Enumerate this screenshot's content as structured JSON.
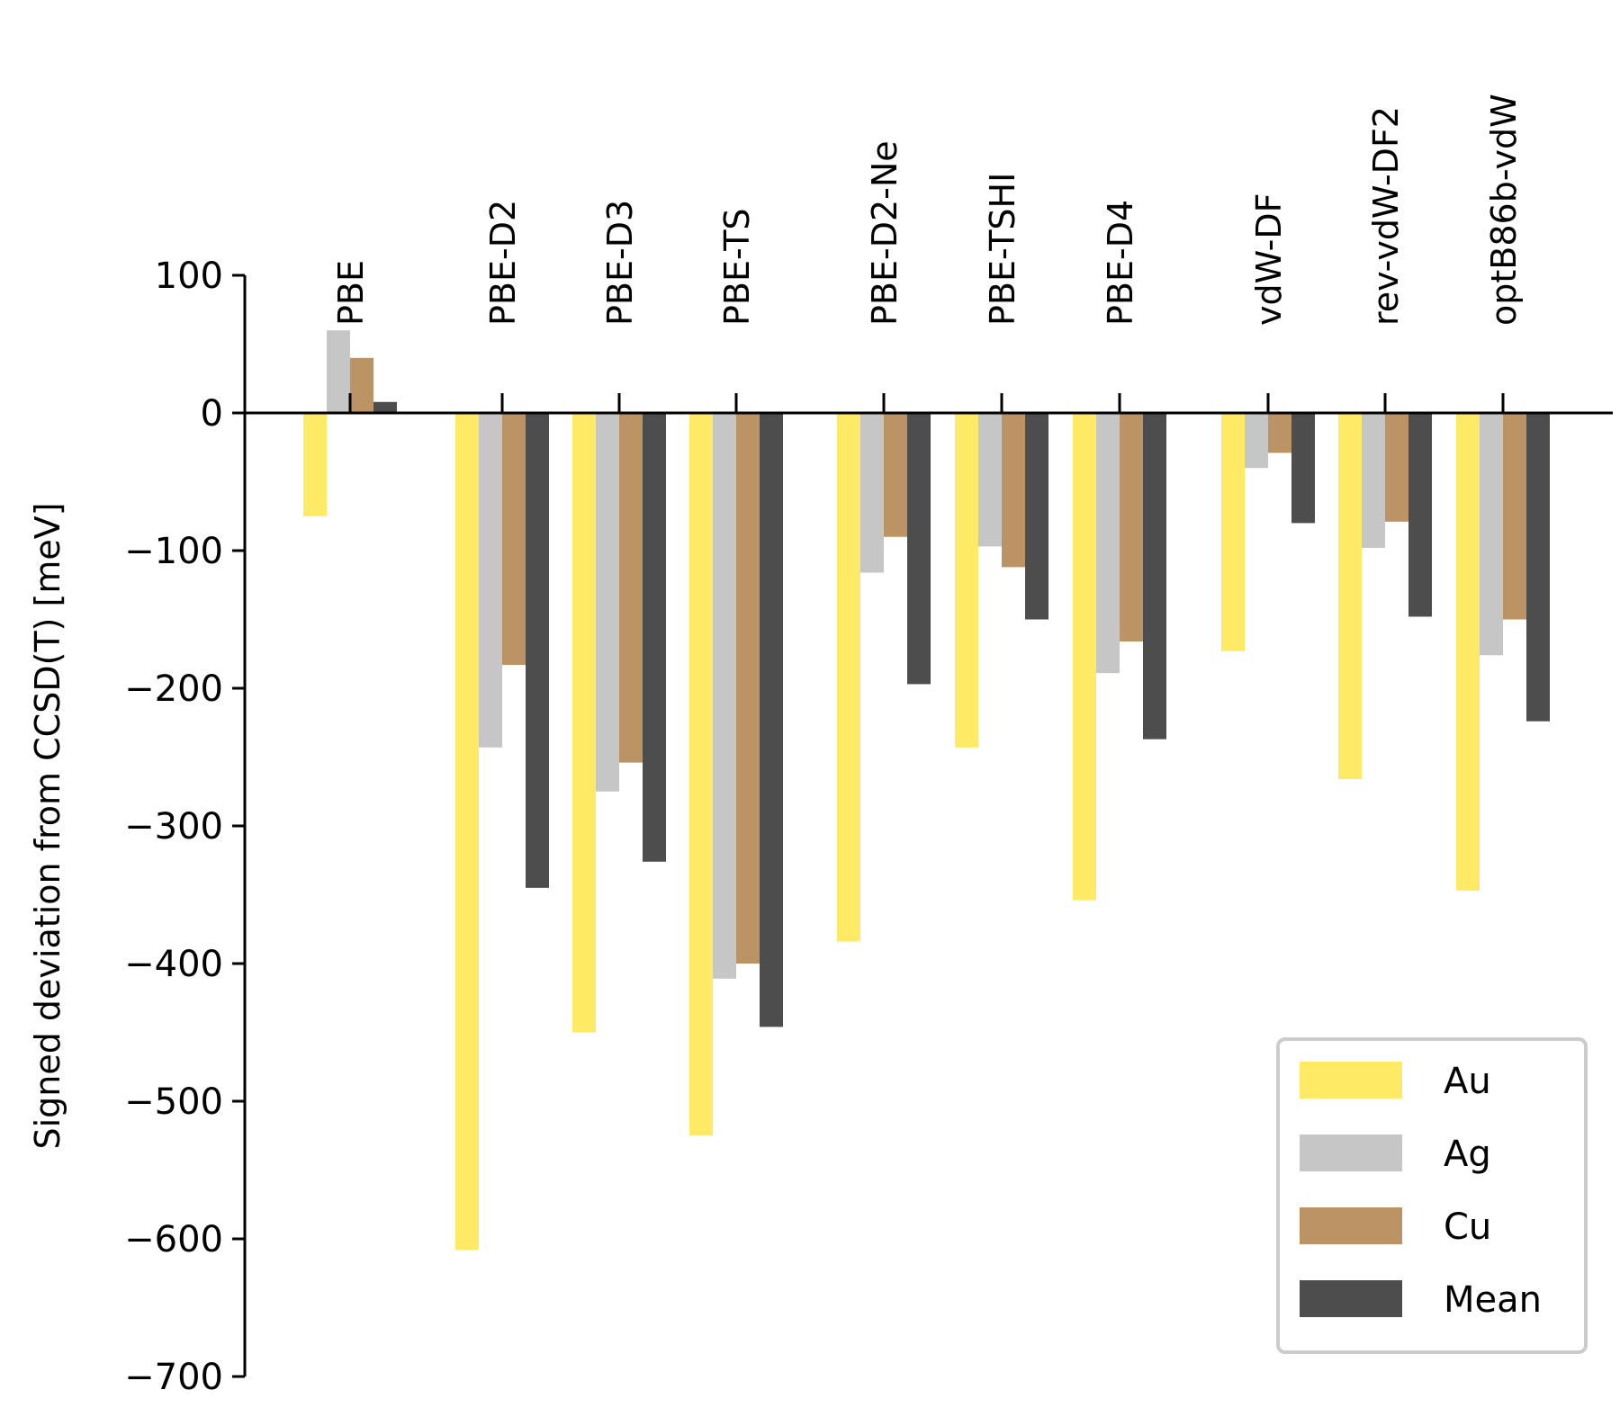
{
  "chart_data": {
    "type": "bar",
    "ylabel": "Signed deviation from CCSD(T) [meV]",
    "ylim": [
      -700,
      100
    ],
    "yticks": [
      100,
      0,
      -100,
      -200,
      -300,
      -400,
      -500,
      -600,
      -700
    ],
    "ytick_labels": [
      "100",
      "0",
      "−100",
      "−200",
      "−300",
      "−400",
      "−500",
      "−600",
      "−700"
    ],
    "categories": [
      "PBE",
      "PBE-D2",
      "PBE-D3",
      "PBE-TS",
      "PBE-D2-Ne",
      "PBE-TSHI",
      "PBE-D4",
      "vdW-DF",
      "rev-vdW-DF2",
      "optB86b-vdW"
    ],
    "series": [
      {
        "name": "Au",
        "color": "#ffea66",
        "values": [
          -75,
          -608,
          -450,
          -525,
          -384,
          -243,
          -354,
          -173,
          -266,
          -347
        ]
      },
      {
        "name": "Ag",
        "color": "#c6c6c6",
        "values": [
          60,
          -243,
          -275,
          -411,
          -116,
          -97,
          -189,
          -40,
          -98,
          -176
        ]
      },
      {
        "name": "Cu",
        "color": "#bc9364",
        "values": [
          40,
          -183,
          -254,
          -400,
          -90,
          -112,
          -166,
          -29,
          -79,
          -150
        ]
      },
      {
        "name": "Mean",
        "color": "#4d4d4d",
        "values": [
          8,
          -345,
          -326,
          -446,
          -197,
          -150,
          -237,
          -80,
          -148,
          -224
        ]
      }
    ],
    "legend_position": "bottom-right",
    "grid": false
  }
}
